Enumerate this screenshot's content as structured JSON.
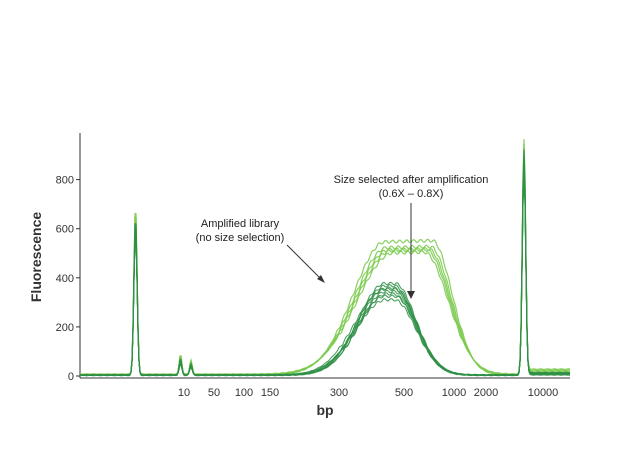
{
  "chart_data": {
    "type": "line",
    "title": "",
    "xlabel": "bp",
    "ylabel": "Fluorescence",
    "xscale": "log (electropherogram)",
    "ylim": [
      0,
      960
    ],
    "grid": false,
    "legend": "none",
    "y_ticks": [
      0,
      200,
      400,
      600,
      800
    ],
    "x_ticks": [
      "10",
      "50",
      "100",
      "150",
      "300",
      "500",
      "1000",
      "2000",
      "10000"
    ],
    "annotations": [
      {
        "id": "amplified",
        "lines": [
          "Amplified library",
          "(no size selection)"
        ]
      },
      {
        "id": "size-selected",
        "lines": [
          "Size selected after amplification",
          "(0.6X – 0.8X)"
        ]
      }
    ],
    "colors": {
      "light_green": "#7ccb4f",
      "dark_green": "#2f8f46",
      "axis": "#333333"
    },
    "series": [
      {
        "color": "light_green",
        "count": 5,
        "peak_bp": 470,
        "peak_fluorescence": [
          545,
          520,
          510,
          505,
          495
        ],
        "spread_bp": [
          250,
          950
        ],
        "lower_marker": 690,
        "upper_marker": 960
      },
      {
        "color": "dark_green",
        "count": 8,
        "peak_bp": 400,
        "peak_fluorescence": [
          375,
          365,
          355,
          350,
          340,
          330,
          320,
          305
        ],
        "spread_bp": [
          230,
          700
        ],
        "lower_marker": 690,
        "upper_marker": 960
      }
    ]
  }
}
